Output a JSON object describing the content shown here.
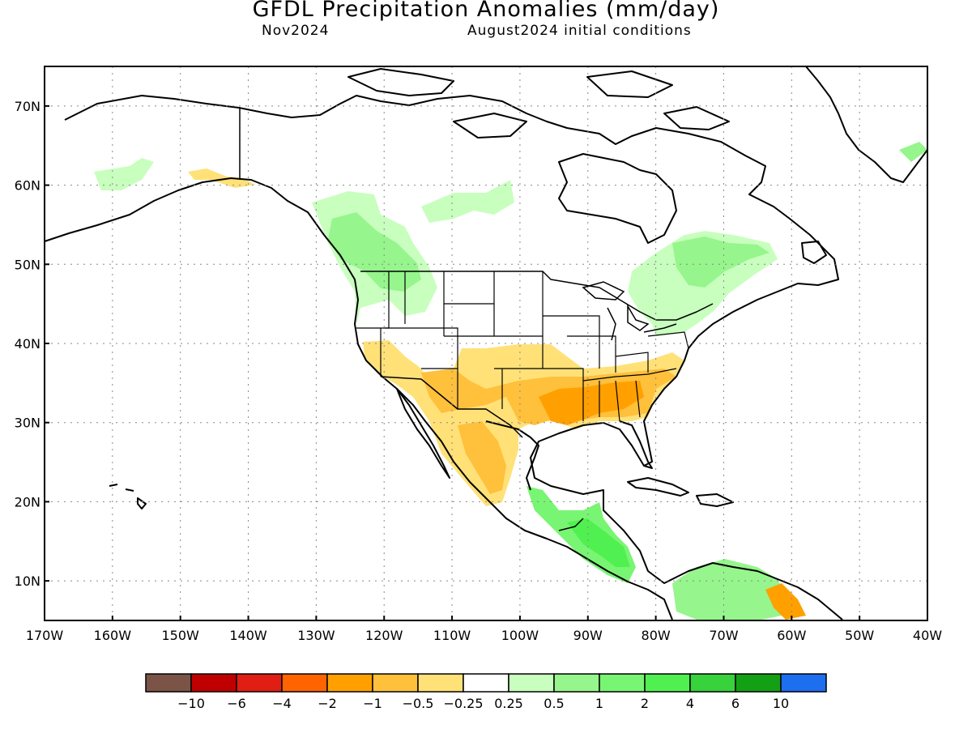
{
  "title": "GFDL Precipitation Anomalies (mm/day)",
  "subtitle_left": "Nov2024",
  "subtitle_right": "August2024 initial conditions",
  "map": {
    "lon_range": [
      -170,
      -40
    ],
    "lat_range": [
      5,
      75
    ],
    "lat_labels": [
      "10N",
      "20N",
      "30N",
      "40N",
      "50N",
      "60N",
      "70N"
    ],
    "lon_labels": [
      "170W",
      "160W",
      "150W",
      "140W",
      "130W",
      "120W",
      "110W",
      "100W",
      "90W",
      "80W",
      "70W",
      "60W",
      "50W",
      "40W"
    ],
    "grid": "dotted",
    "basemap": "political boundaries (coastlines, country and US state borders)",
    "anomaly_regions": [
      {
        "name": "pacific-northwest-wet",
        "category": "0.5 to 1",
        "color": "#96f58c"
      },
      {
        "name": "western-canada-wet",
        "category": "0.25 to 0.5",
        "color": "#c8ffbe"
      },
      {
        "name": "southwest-dry",
        "category": "-0.5 to -0.25",
        "color": "#ffe178"
      },
      {
        "name": "southern-plains-dry",
        "category": "-1 to -0.5",
        "color": "#ffc03c"
      },
      {
        "name": "gulf-coast-dry",
        "category": "-2 to -1",
        "color": "#ffa000"
      },
      {
        "name": "eastern-canada-wet",
        "category": "0.5 to 1",
        "color": "#96f58c"
      },
      {
        "name": "central-america-wet",
        "category": "2 to 4",
        "color": "#50f050"
      },
      {
        "name": "northern-south-america-wet",
        "category": "1 to 2",
        "color": "#78f573"
      },
      {
        "name": "venezuela-dry",
        "category": "-2 to -1",
        "color": "#ffa000"
      }
    ]
  },
  "colorbar": {
    "colors": [
      "#7c5447",
      "#c00000",
      "#e01e14",
      "#ff6400",
      "#ffa000",
      "#ffc03c",
      "#ffe178",
      "#ffffff",
      "#c8ffbe",
      "#96f58c",
      "#78f573",
      "#50f050",
      "#37d23c",
      "#14a014",
      "#1e6ef0"
    ],
    "labels": [
      "−10",
      "−6",
      "−4",
      "−2",
      "−1",
      "−0.5",
      "−0.25",
      "0.25",
      "0.5",
      "1",
      "2",
      "4",
      "6",
      "10"
    ]
  }
}
